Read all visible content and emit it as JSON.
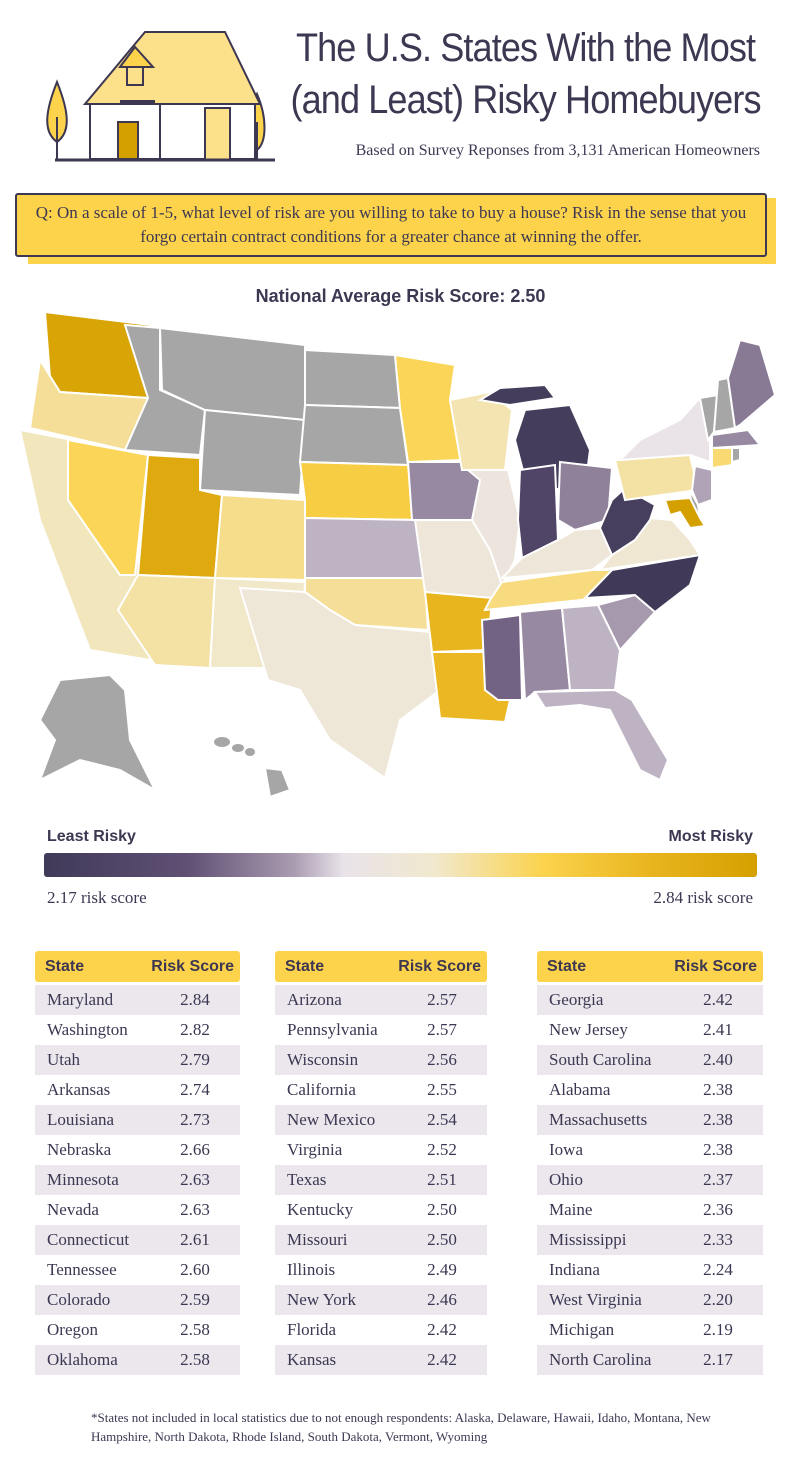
{
  "header": {
    "title": "The U.S. States With the Most (and Least) Risky Homebuyers",
    "subtitle": "Based on Survey Reponses from 3,131 American Homeowners",
    "illustration_icon": "house-icon"
  },
  "question": "Q: On a scale of 1-5, what level of risk are you willing to take to buy a house? Risk in the sense that you forgo certain contract conditions for a greater chance at winning the offer.",
  "national_average": "National Average Risk Score: 2.50",
  "colors": {
    "excluded": "#a6a6a6",
    "low": "#403a58",
    "mid": "#e9e3ea",
    "high": "#d4a000",
    "accent": "#fcd34b",
    "text": "#3d3752"
  },
  "legend": {
    "left_label": "Least Risky",
    "right_label": "Most Risky",
    "min_label": "2.17 risk score",
    "max_label": "2.84 risk score",
    "min": 2.17,
    "max": 2.84
  },
  "table_headers": {
    "state": "State",
    "score": "Risk Score"
  },
  "tables": [
    [
      [
        "Maryland",
        "2.84"
      ],
      [
        "Washington",
        "2.82"
      ],
      [
        "Utah",
        "2.79"
      ],
      [
        "Arkansas",
        "2.74"
      ],
      [
        "Louisiana",
        "2.73"
      ],
      [
        "Nebraska",
        "2.66"
      ],
      [
        "Minnesota",
        "2.63"
      ],
      [
        "Nevada",
        "2.63"
      ],
      [
        "Connecticut",
        "2.61"
      ],
      [
        "Tennessee",
        "2.60"
      ],
      [
        "Colorado",
        "2.59"
      ],
      [
        "Oregon",
        "2.58"
      ],
      [
        "Oklahoma",
        "2.58"
      ]
    ],
    [
      [
        "Arizona",
        "2.57"
      ],
      [
        "Pennsylvania",
        "2.57"
      ],
      [
        "Wisconsin",
        "2.56"
      ],
      [
        "California",
        "2.55"
      ],
      [
        "New Mexico",
        "2.54"
      ],
      [
        "Virginia",
        "2.52"
      ],
      [
        "Texas",
        "2.51"
      ],
      [
        "Kentucky",
        "2.50"
      ],
      [
        "Missouri",
        "2.50"
      ],
      [
        "Illinois",
        "2.49"
      ],
      [
        "New York",
        "2.46"
      ],
      [
        "Florida",
        "2.42"
      ],
      [
        "Kansas",
        "2.42"
      ]
    ],
    [
      [
        "Georgia",
        "2.42"
      ],
      [
        "New Jersey",
        "2.41"
      ],
      [
        "South Carolina",
        "2.40"
      ],
      [
        "Alabama",
        "2.38"
      ],
      [
        "Massachusetts",
        "2.38"
      ],
      [
        "Iowa",
        "2.38"
      ],
      [
        "Ohio",
        "2.37"
      ],
      [
        "Maine",
        "2.36"
      ],
      [
        "Mississippi",
        "2.33"
      ],
      [
        "Indiana",
        "2.24"
      ],
      [
        "West Virginia",
        "2.20"
      ],
      [
        "Michigan",
        "2.19"
      ],
      [
        "North Carolina",
        "2.17"
      ]
    ]
  ],
  "excluded_states": [
    "Alaska",
    "Delaware",
    "Hawaii",
    "Idaho",
    "Montana",
    "New Hampshire",
    "North Dakota",
    "Rhode Island",
    "South Dakota",
    "Vermont",
    "Wyoming"
  ],
  "footnote": "*States not included in local statistics due to not enough respondents: Alaska, Delaware, Hawaii, Idaho, Montana, New Hampshire, North Dakota, Rhode Island, South Dakota, Vermont, Wyoming"
}
